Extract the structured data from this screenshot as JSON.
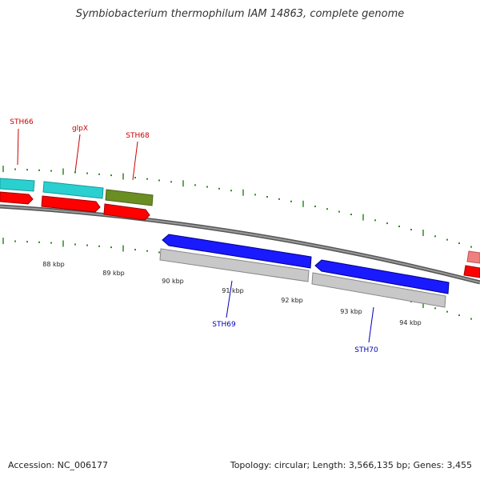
{
  "title": "Symbiobacterium thermophilum IAM 14863, complete genome",
  "footer": {
    "accession": "Accession: NC_006177",
    "summary": "Topology: circular; Length: 3,566,135 bp; Genes: 3,455"
  },
  "colors": {
    "backbone": "#7a7a7a",
    "tick": "#2e8b1f",
    "forward_cds": "#2ad0d0",
    "forward_gene": "#ff0000",
    "reverse_cds": "#1a1aff",
    "reverse_gene": "#c0c0c0",
    "olive_cds": "#6b8e23",
    "forward_label": "#cc0000",
    "reverse_label": "#0000bb"
  },
  "scale_labels": [
    "88 kbp",
    "89 kbp",
    "90 kbp",
    "91 kbp",
    "92 kbp",
    "93 kbp",
    "94 kbp"
  ],
  "gene_labels": {
    "sth66": "STH66",
    "glpx": "glpX",
    "sth68": "STH68",
    "sth69": "STH69",
    "sth70": "STH70"
  }
}
